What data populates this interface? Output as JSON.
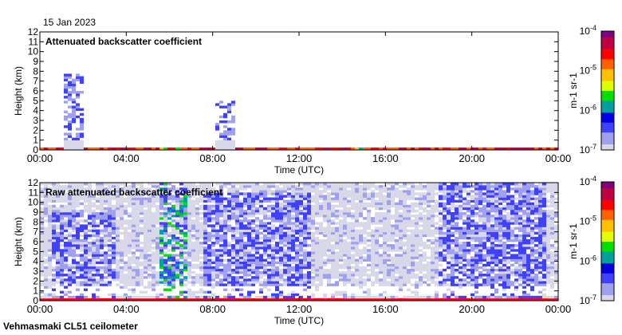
{
  "date": "15 Jan 2023",
  "footer": "Vehmasmaki CL51 ceilometer",
  "chart_data": [
    {
      "type": "heatmap",
      "title": "Attenuated backscatter coefficient",
      "xlabel": "Time (UTC)",
      "ylabel": "Height (km)",
      "xticks": [
        "00:00",
        "04:00",
        "08:00",
        "12:00",
        "16:00",
        "20:00",
        "00:00"
      ],
      "xlim_hours": [
        0,
        24
      ],
      "yticks": [
        "0",
        "1",
        "2",
        "3",
        "4",
        "5",
        "6",
        "7",
        "8",
        "9",
        "10",
        "11",
        "12"
      ],
      "ylim": [
        0,
        12
      ],
      "colorbar": {
        "label": "m-1 sr-1",
        "label_base": [
          "m",
          "sr"
        ],
        "label_exp": [
          "-1",
          "-1"
        ],
        "ticks": [
          "-7",
          "-6",
          "-5",
          "-4"
        ],
        "scale": "log",
        "range": [
          1e-07,
          0.0001
        ]
      },
      "features": [
        {
          "t0": 1.1,
          "t1": 2.0,
          "h_top": 7.7,
          "kind": "cloud"
        },
        {
          "t0": 8.1,
          "t1": 9.0,
          "h_top": 4.9,
          "kind": "cloud"
        },
        {
          "t0": 5.4,
          "t1": 6.5,
          "h_top": 0.4,
          "kind": "aerosol"
        },
        {
          "t0": 13.5,
          "t1": 15.0,
          "h_top": 0.3,
          "kind": "aerosol"
        }
      ]
    },
    {
      "type": "heatmap",
      "title": "Raw attenuated backscatter coefficient",
      "xlabel": "Time (UTC)",
      "ylabel": "Height (km)",
      "xticks": [
        "00:00",
        "04:00",
        "08:00",
        "12:00",
        "16:00",
        "20:00",
        "00:00"
      ],
      "xlim_hours": [
        0,
        24
      ],
      "yticks": [
        "0",
        "1",
        "2",
        "3",
        "4",
        "5",
        "6",
        "7",
        "8",
        "9",
        "10",
        "11",
        "12"
      ],
      "ylim": [
        0,
        12
      ],
      "colorbar": {
        "label": "m-1 sr-1",
        "label_base": [
          "m",
          "sr"
        ],
        "label_exp": [
          "-1",
          "-1"
        ],
        "ticks": [
          "-7",
          "-6",
          "-5",
          "-4"
        ],
        "scale": "log",
        "range": [
          1e-07,
          0.0001
        ]
      },
      "features": [
        {
          "t0": 0.5,
          "t1": 3.5,
          "h_top": 9.0,
          "kind": "noise-dense"
        },
        {
          "t0": 5.5,
          "t1": 6.8,
          "h_top": 12,
          "kind": "noise-strong"
        },
        {
          "t0": 7.5,
          "t1": 12.5,
          "h_top": 11.0,
          "kind": "noise-dense"
        },
        {
          "t0": 18.5,
          "t1": 23.5,
          "h_top": 12,
          "kind": "noise-dense"
        }
      ]
    }
  ],
  "colors": {
    "cmap": [
      "#d8d8e8",
      "#a0a0f0",
      "#4040ff",
      "#0000e0",
      "#00a0a0",
      "#00e000",
      "#e0ff00",
      "#ffc000",
      "#ff6000",
      "#ff0000",
      "#c00040",
      "#800080"
    ]
  }
}
